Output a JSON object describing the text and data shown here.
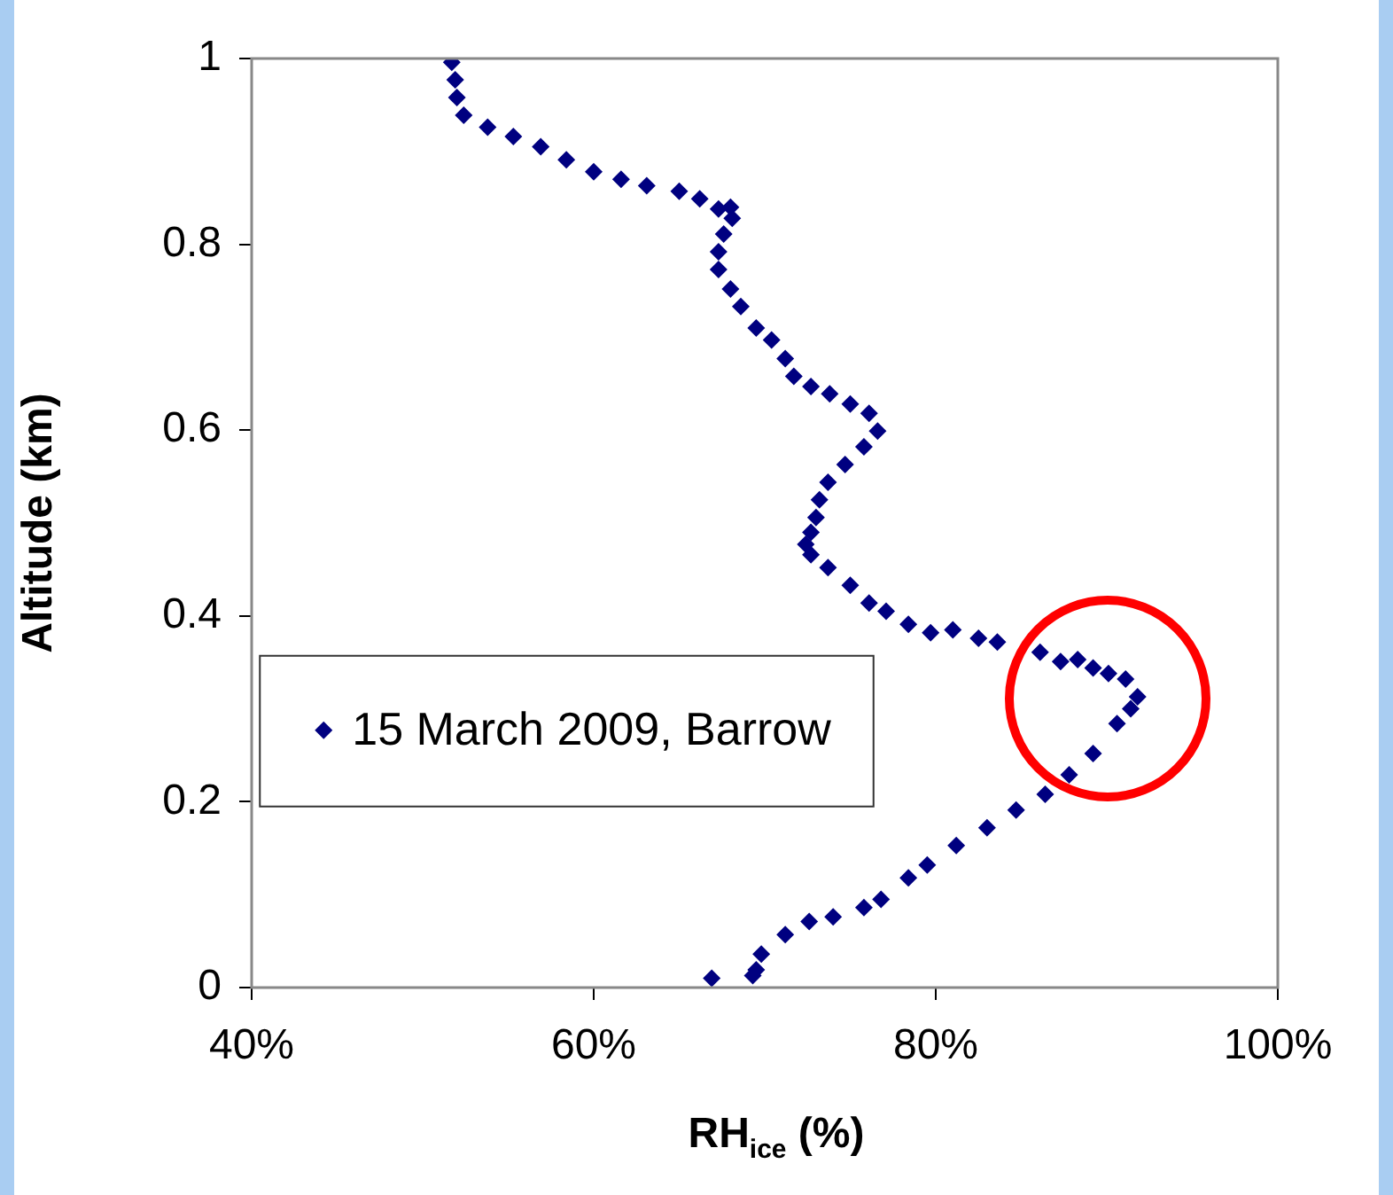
{
  "chart_data": {
    "type": "scatter",
    "xlabel": "RH$_{ice}$ (%)",
    "ylabel": "Altitude (km)",
    "xlim": [
      40,
      100
    ],
    "xticks": [
      {
        "value": 40,
        "label": "40%"
      },
      {
        "value": 60,
        "label": "60%"
      },
      {
        "value": 80,
        "label": "80%"
      },
      {
        "value": 100,
        "label": "100%"
      }
    ],
    "ylim": [
      0,
      1
    ],
    "yticks": [
      0,
      0.2,
      0.4,
      0.6,
      0.8,
      1
    ],
    "grid": false,
    "legend": "left",
    "marker": "diamond",
    "series": [
      {
        "name": "15 March 2009, Barrow",
        "color": "#000080",
        "x": [
          51.7,
          51.9,
          52.0,
          52.4,
          53.8,
          55.3,
          56.9,
          58.4,
          60.0,
          61.6,
          63.1,
          65.0,
          66.2,
          67.3,
          68.0,
          68.1,
          67.6,
          67.3,
          67.3,
          68.0,
          68.6,
          69.5,
          70.4,
          71.2,
          71.7,
          72.7,
          73.8,
          75.0,
          76.1,
          76.6,
          75.8,
          74.7,
          73.7,
          73.2,
          73.0,
          72.7,
          72.4,
          72.7,
          73.7,
          75.0,
          76.1,
          77.1,
          78.4,
          79.7,
          81.0,
          82.5,
          83.6,
          86.1,
          87.3,
          88.3,
          89.2,
          90.1,
          91.1,
          91.8,
          91.4,
          90.6,
          89.2,
          87.8,
          86.4,
          84.7,
          83.0,
          81.2,
          79.5,
          78.4,
          76.8,
          75.8,
          74.0,
          72.6,
          71.2,
          69.8,
          69.5,
          69.3,
          66.9
        ],
        "values": [
          0.996,
          0.977,
          0.958,
          0.939,
          0.926,
          0.916,
          0.905,
          0.891,
          0.878,
          0.87,
          0.863,
          0.857,
          0.849,
          0.838,
          0.84,
          0.828,
          0.811,
          0.792,
          0.773,
          0.752,
          0.733,
          0.71,
          0.697,
          0.677,
          0.658,
          0.647,
          0.639,
          0.628,
          0.618,
          0.599,
          0.582,
          0.563,
          0.544,
          0.525,
          0.506,
          0.49,
          0.477,
          0.466,
          0.452,
          0.433,
          0.414,
          0.405,
          0.391,
          0.382,
          0.385,
          0.376,
          0.372,
          0.361,
          0.351,
          0.353,
          0.344,
          0.338,
          0.332,
          0.313,
          0.3,
          0.284,
          0.252,
          0.229,
          0.208,
          0.191,
          0.172,
          0.153,
          0.132,
          0.118,
          0.095,
          0.086,
          0.076,
          0.071,
          0.057,
          0.036,
          0.019,
          0.013,
          0.01
        ]
      }
    ]
  }
}
